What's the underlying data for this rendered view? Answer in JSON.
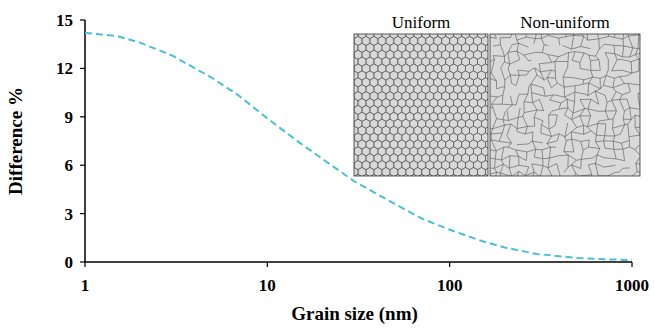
{
  "chart_data": {
    "type": "line",
    "x_label": "Grain size (nm)",
    "y_label": "Difference %",
    "x": [
      1,
      1.5,
      2,
      3,
      5,
      7,
      10,
      15,
      20,
      30,
      50,
      70,
      100,
      150,
      200,
      300,
      500,
      700,
      1000
    ],
    "values": [
      14.2,
      14.0,
      13.6,
      12.8,
      11.4,
      10.3,
      8.9,
      7.4,
      6.4,
      5.0,
      3.6,
      2.7,
      2.0,
      1.3,
      0.9,
      0.5,
      0.25,
      0.17,
      0.12
    ],
    "color": "#4cbfd2",
    "line_style": "dashed",
    "log": "x",
    "xlim": [
      1,
      1000
    ],
    "ylim": [
      0,
      15
    ],
    "xticks": [
      1,
      10,
      100,
      1000
    ],
    "yticks": [
      0,
      3,
      6,
      9,
      12,
      15
    ],
    "grid": false,
    "annotations": [
      "Uniform",
      "Non-uniform"
    ]
  }
}
